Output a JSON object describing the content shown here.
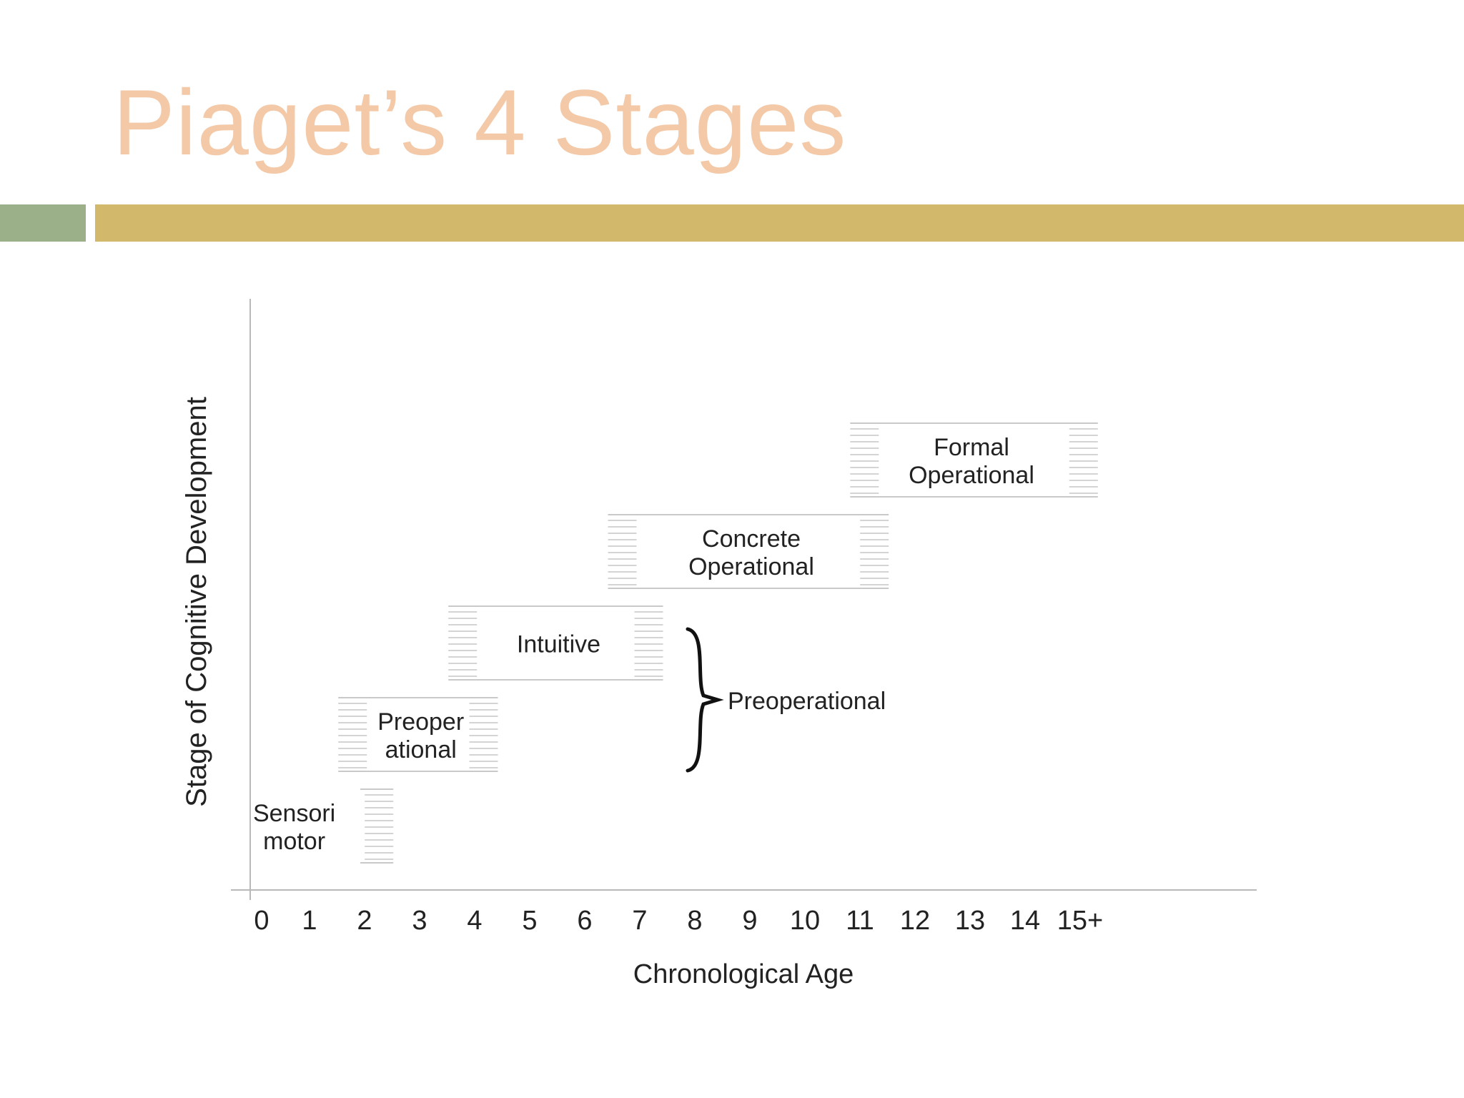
{
  "slide": {
    "title": "Piaget’s 4 Stages",
    "title_color": "#f3c9a8",
    "bar_left_color": "#9bb088",
    "bar_right_color": "#d1b86a"
  },
  "chart_data": {
    "type": "step",
    "title": "",
    "xlabel": "Chronological Age",
    "ylabel": "Stage of Cognitive Development",
    "x_ticks": [
      "0",
      "1",
      "2",
      "3",
      "4",
      "5",
      "6",
      "7",
      "8",
      "9",
      "10",
      "11",
      "12",
      "13",
      "14",
      "15+"
    ],
    "stages": [
      {
        "name": "sensorimotor",
        "lines": [
          "Sensori",
          "motor"
        ],
        "start": 0,
        "end": 2,
        "fade_start": 2,
        "fade_end": 2.6,
        "level": 1
      },
      {
        "name": "preoperational",
        "lines": [
          "Preoper",
          "ational"
        ],
        "start": 2,
        "end": 4,
        "fade_start": 1.6,
        "fade_end": 4.5,
        "level": 2
      },
      {
        "name": "intuitive",
        "lines": [
          "Intuitive"
        ],
        "start": 4,
        "end": 7,
        "fade_start": 3.6,
        "fade_end": 7.5,
        "level": 3
      },
      {
        "name": "concrete-operational",
        "lines": [
          "Concrete",
          "Operational"
        ],
        "start": 7,
        "end": 11,
        "fade_start": 6.5,
        "fade_end": 11.6,
        "level": 4
      },
      {
        "name": "formal-operational",
        "lines": [
          "Formal",
          "Operational"
        ],
        "start": 11,
        "end": 15,
        "fade_start": 10.9,
        "fade_end": 15.4,
        "level": 5
      }
    ],
    "bracket_label": "Preoperational",
    "bracket_spans_levels": [
      2,
      3
    ],
    "legend": "none",
    "grid": false
  }
}
